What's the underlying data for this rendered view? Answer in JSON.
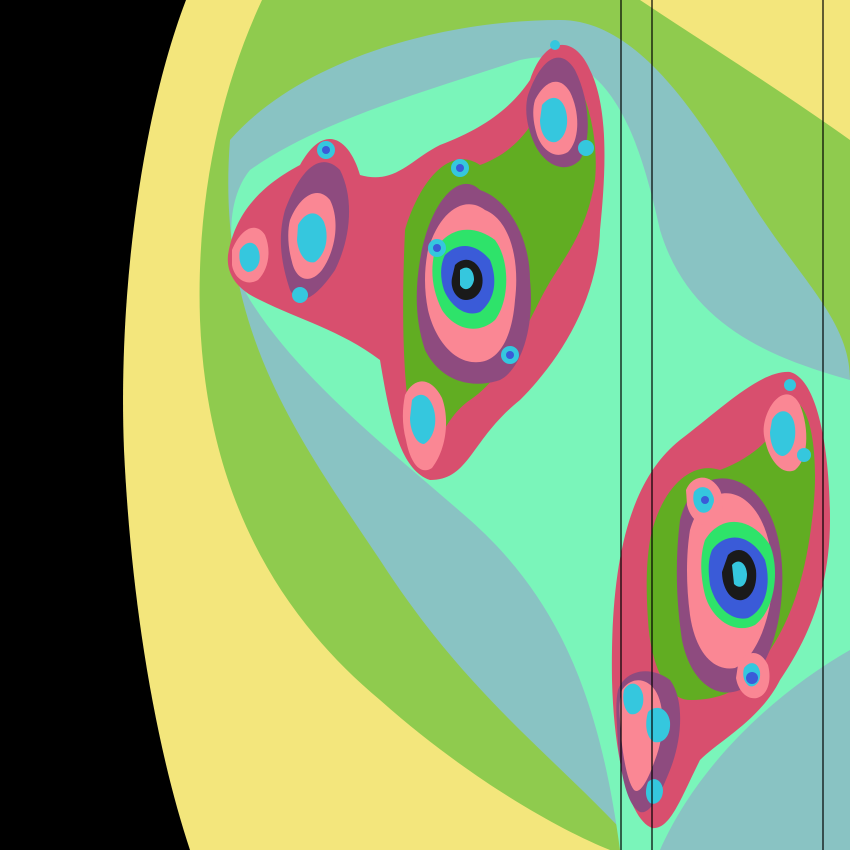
{
  "image": {
    "kind": "fractal-rendering",
    "palette": {
      "background": "#000000",
      "yellow": "#F3E67C",
      "lime": "#8FCB4E",
      "teal_gray": "#89C3C3",
      "mint": "#7AF5BA",
      "crimson": "#D84F6E",
      "green": "#61AD22",
      "purple": "#8E4B7F",
      "pink": "#FA8794",
      "bright_green": "#2EE36A",
      "blue": "#3A5BD8",
      "cyan": "#35C7DE",
      "dark": "#1A1A1A"
    }
  }
}
